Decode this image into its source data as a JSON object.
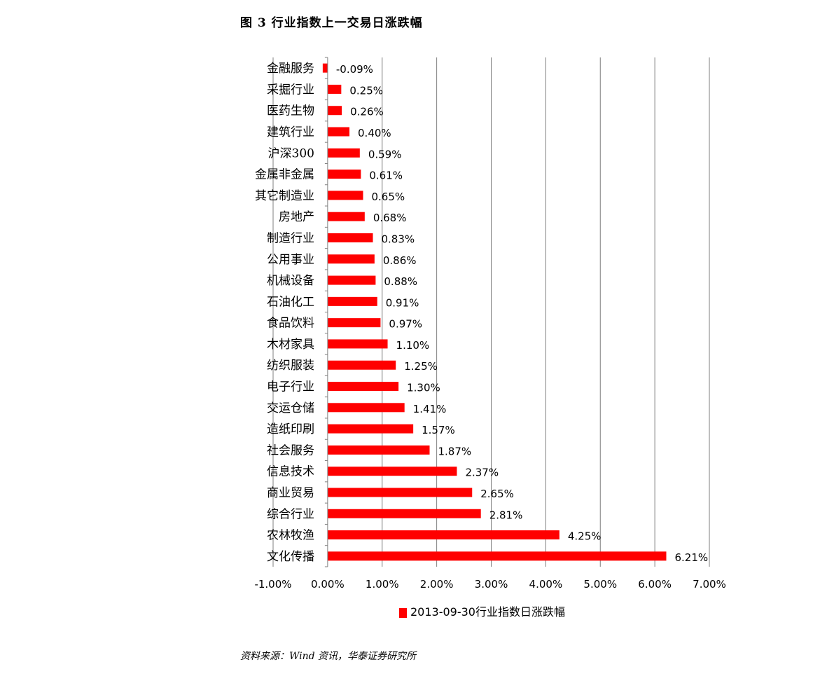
{
  "figure": {
    "title": "图 3   行业指数上一交易日涨跌幅",
    "source": "资料来源：Wind 资讯，华泰证券研究所"
  },
  "chart_data": {
    "type": "bar",
    "orientation": "horizontal",
    "title": "",
    "xlabel": "",
    "ylabel": "",
    "xlim": [
      -0.01,
      0.07
    ],
    "grid": true,
    "legend_position": "bottom",
    "bar_color": "#ff0000",
    "x_tick_labels": [
      "-1.00%",
      "0.00%",
      "1.00%",
      "2.00%",
      "3.00%",
      "4.00%",
      "5.00%",
      "6.00%",
      "7.00%"
    ],
    "categories": [
      "金融服务",
      "采掘行业",
      "医药生物",
      "建筑行业",
      "沪深300",
      "金属非金属",
      "其它制造业",
      "房地产",
      "制造行业",
      "公用事业",
      "机械设备",
      "石油化工",
      "食品饮料",
      "木材家具",
      "纺织服装",
      "电子行业",
      "交运仓储",
      "造纸印刷",
      "社会服务",
      "信息技术",
      "商业贸易",
      "综合行业",
      "农林牧渔",
      "文化传播"
    ],
    "series": [
      {
        "name": "2013-09-30行业指数日涨跌幅",
        "values": [
          -0.0009,
          0.0025,
          0.0026,
          0.004,
          0.0059,
          0.0061,
          0.0065,
          0.0068,
          0.0083,
          0.0086,
          0.0088,
          0.0091,
          0.0097,
          0.011,
          0.0125,
          0.013,
          0.0141,
          0.0157,
          0.0187,
          0.0237,
          0.0265,
          0.0281,
          0.0425,
          0.0621
        ],
        "labels": [
          "-0.09%",
          "0.25%",
          "0.26%",
          "0.40%",
          "0.59%",
          "0.61%",
          "0.65%",
          "0.68%",
          "0.83%",
          "0.86%",
          "0.88%",
          "0.91%",
          "0.97%",
          "1.10%",
          "1.25%",
          "1.30%",
          "1.41%",
          "1.57%",
          "1.87%",
          "2.37%",
          "2.65%",
          "2.81%",
          "4.25%",
          "6.21%"
        ]
      }
    ]
  }
}
